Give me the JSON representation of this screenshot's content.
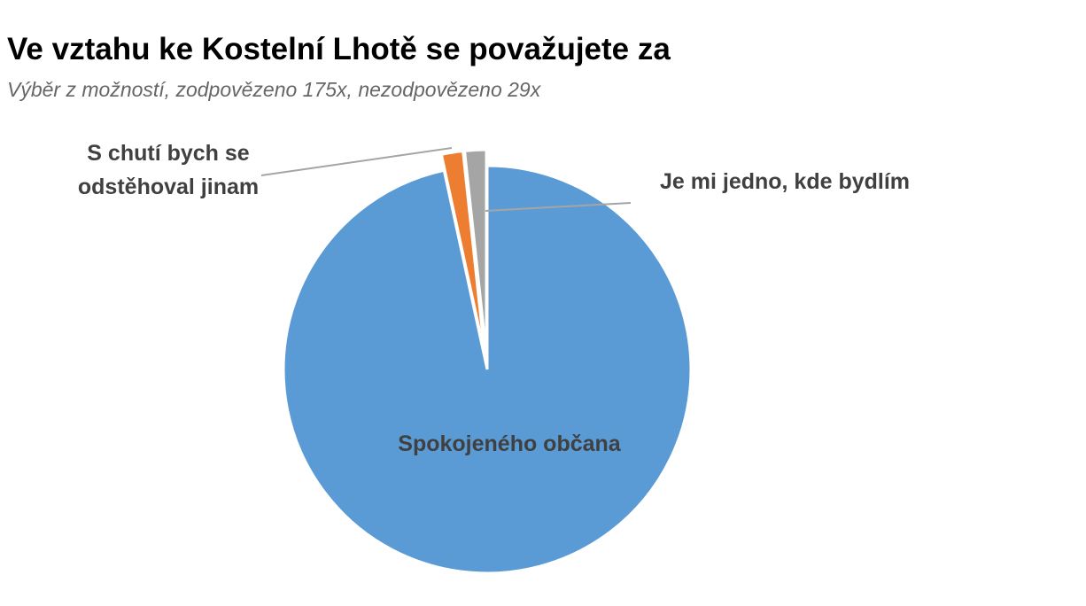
{
  "chart_data": {
    "type": "pie",
    "title": "Ve vztahu ke Kostelní Lhotě se považujete za",
    "subtitle": "Výběr z možností, zodpovězeno 175x, nezodpovězeno 29x",
    "categories": [
      "Spokojeného občana",
      "S chutí bych se odstěhoval jinam",
      "Je mi jedno, kde bydlím"
    ],
    "values": [
      96.6,
      1.7,
      1.7
    ],
    "colors": [
      "#5b9bd5",
      "#ed7d31",
      "#a5a5a5"
    ]
  }
}
